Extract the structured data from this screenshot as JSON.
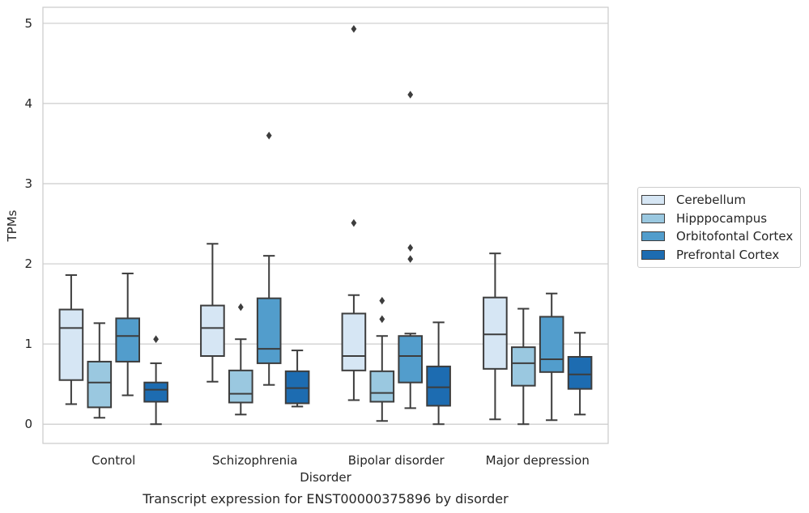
{
  "chart_data": {
    "type": "box",
    "title": "Transcript expression for ENST00000375896 by disorder",
    "xlabel": "Disorder",
    "ylabel": "TPMs",
    "ylim": [
      -0.24,
      5.2
    ],
    "yticks": [
      0,
      1,
      2,
      3,
      4,
      5
    ],
    "categories": [
      "Control",
      "Schizophrenia",
      "Bipolar disorder",
      "Major depression"
    ],
    "grid": "horizontal",
    "legend_position": "right",
    "series": [
      {
        "name": "Cerebellum",
        "color": "#d6e6f4",
        "boxes": [
          {
            "whislo": 0.25,
            "q1": 0.55,
            "med": 1.2,
            "q3": 1.43,
            "whishi": 1.86,
            "fliers": []
          },
          {
            "whislo": 0.53,
            "q1": 0.85,
            "med": 1.2,
            "q3": 1.48,
            "whishi": 2.25,
            "fliers": []
          },
          {
            "whislo": 0.3,
            "q1": 0.67,
            "med": 0.85,
            "q3": 1.38,
            "whishi": 1.61,
            "fliers": [
              4.93,
              2.51
            ]
          },
          {
            "whislo": 0.06,
            "q1": 0.69,
            "med": 1.12,
            "q3": 1.58,
            "whishi": 2.13,
            "fliers": []
          }
        ]
      },
      {
        "name": "Hipppocampus",
        "color": "#9ac8e0",
        "boxes": [
          {
            "whislo": 0.08,
            "q1": 0.21,
            "med": 0.52,
            "q3": 0.78,
            "whishi": 1.26,
            "fliers": []
          },
          {
            "whislo": 0.12,
            "q1": 0.27,
            "med": 0.38,
            "q3": 0.67,
            "whishi": 1.06,
            "fliers": [
              1.46
            ]
          },
          {
            "whislo": 0.04,
            "q1": 0.28,
            "med": 0.39,
            "q3": 0.66,
            "whishi": 1.1,
            "fliers": [
              1.54,
              1.31
            ]
          },
          {
            "whislo": 0.0,
            "q1": 0.48,
            "med": 0.76,
            "q3": 0.96,
            "whishi": 1.44,
            "fliers": []
          }
        ]
      },
      {
        "name": "Orbitofontal Cortex",
        "color": "#529dcc",
        "boxes": [
          {
            "whislo": 0.36,
            "q1": 0.78,
            "med": 1.1,
            "q3": 1.32,
            "whishi": 1.88,
            "fliers": []
          },
          {
            "whislo": 0.49,
            "q1": 0.76,
            "med": 0.94,
            "q3": 1.57,
            "whishi": 2.1,
            "fliers": [
              3.6
            ]
          },
          {
            "whislo": 0.2,
            "q1": 0.52,
            "med": 0.85,
            "q3": 1.1,
            "whishi": 1.13,
            "fliers": [
              4.11,
              2.2,
              2.06
            ]
          },
          {
            "whislo": 0.05,
            "q1": 0.65,
            "med": 0.81,
            "q3": 1.34,
            "whishi": 1.63,
            "fliers": []
          }
        ]
      },
      {
        "name": "Prefrontal Cortex",
        "color": "#1d6cb1",
        "boxes": [
          {
            "whislo": 0.0,
            "q1": 0.28,
            "med": 0.43,
            "q3": 0.52,
            "whishi": 0.76,
            "fliers": [
              1.06
            ]
          },
          {
            "whislo": 0.22,
            "q1": 0.26,
            "med": 0.45,
            "q3": 0.66,
            "whishi": 0.92,
            "fliers": []
          },
          {
            "whislo": 0.0,
            "q1": 0.23,
            "med": 0.46,
            "q3": 0.72,
            "whishi": 1.27,
            "fliers": []
          },
          {
            "whislo": 0.12,
            "q1": 0.44,
            "med": 0.62,
            "q3": 0.84,
            "whishi": 1.14,
            "fliers": []
          }
        ]
      }
    ]
  }
}
